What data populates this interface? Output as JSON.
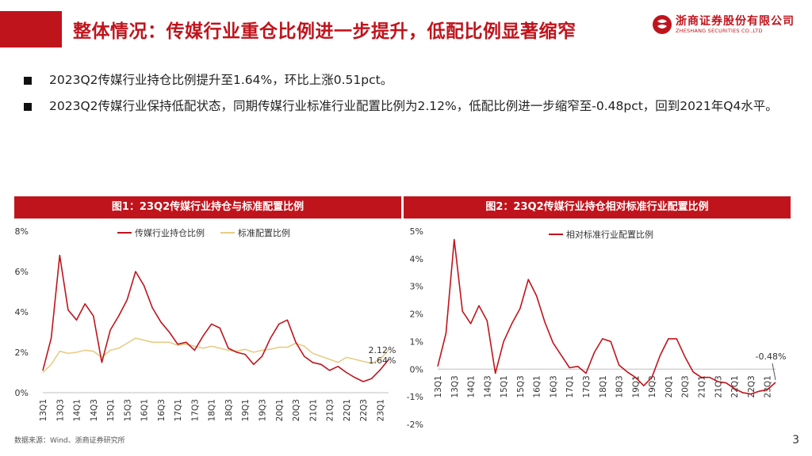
{
  "header": {
    "title": "整体情况：传媒行业重仓比例进一步提升，低配比例显著缩窄",
    "logo_cn": "浙商证券股份有限公司",
    "logo_en": "ZHESHANG SECURITIES CO.,LTD"
  },
  "bullets": [
    "2023Q2传媒行业持仓比例提升至1.64%，环比上涨0.51pct。",
    "2023Q2传媒行业保持低配状态，同期传媒行业标准行业配置比例为2.12%，低配比例进一步缩窄至-0.48pct，回到2021年Q4水平。"
  ],
  "colors": {
    "accent": "#c0141c",
    "series1": "#c0141c",
    "series2": "#e6cc85",
    "grid": "#d9d9d9"
  },
  "chart_data": [
    {
      "type": "line",
      "title": "图1：23Q2传媒行业持仓与标准配置比例",
      "x": [
        "13Q1",
        "13Q2",
        "13Q3",
        "13Q4",
        "14Q1",
        "14Q2",
        "14Q3",
        "14Q4",
        "15Q1",
        "15Q2",
        "15Q3",
        "15Q4",
        "16Q1",
        "16Q2",
        "16Q3",
        "16Q4",
        "17Q1",
        "17Q2",
        "17Q3",
        "17Q4",
        "18Q1",
        "18Q2",
        "18Q3",
        "18Q4",
        "19Q1",
        "19Q2",
        "19Q3",
        "19Q4",
        "20Q1",
        "20Q2",
        "20Q3",
        "20Q4",
        "21Q1",
        "21Q2",
        "21Q3",
        "21Q4",
        "22Q1",
        "22Q2",
        "22Q3",
        "22Q4",
        "23Q1",
        "23Q2"
      ],
      "tick_labels": [
        "13Q1",
        "13Q3",
        "14Q1",
        "14Q3",
        "15Q1",
        "15Q3",
        "16Q1",
        "16Q3",
        "17Q1",
        "17Q3",
        "18Q1",
        "18Q3",
        "19Q1",
        "19Q3",
        "20Q1",
        "20Q3",
        "21Q1",
        "21Q3",
        "22Q1",
        "22Q3",
        "23Q1"
      ],
      "series": [
        {
          "name": "传媒行业持仓比例",
          "values": [
            1.1,
            2.7,
            6.8,
            4.1,
            3.6,
            4.4,
            3.8,
            1.5,
            3.1,
            3.8,
            4.6,
            6.0,
            5.3,
            4.2,
            3.5,
            3.0,
            2.4,
            2.5,
            2.1,
            2.8,
            3.4,
            3.2,
            2.2,
            2.0,
            1.9,
            1.4,
            1.8,
            2.7,
            3.4,
            3.6,
            2.5,
            1.8,
            1.5,
            1.4,
            1.1,
            1.3,
            1.0,
            0.75,
            0.55,
            0.7,
            1.13,
            1.64
          ]
        },
        {
          "name": "标准配置比例",
          "values": [
            1.0,
            1.4,
            2.05,
            1.95,
            2.0,
            2.1,
            2.05,
            1.75,
            2.1,
            2.2,
            2.45,
            2.7,
            2.6,
            2.5,
            2.5,
            2.5,
            2.35,
            2.4,
            2.3,
            2.2,
            2.3,
            2.2,
            2.1,
            2.05,
            2.15,
            2.0,
            2.1,
            2.15,
            2.25,
            2.25,
            2.45,
            2.3,
            1.95,
            1.8,
            1.65,
            1.5,
            1.75,
            1.65,
            1.55,
            1.45,
            1.65,
            2.12
          ]
        }
      ],
      "ylim": [
        0,
        8
      ],
      "y_ticks": [
        "0%",
        "2%",
        "4%",
        "6%",
        "8%"
      ],
      "annotations": [
        "2.12%",
        "1.64%"
      ],
      "legend": "top"
    },
    {
      "type": "line",
      "title": "图2：23Q2传媒行业持仓相对标准行业配置比例",
      "x": [
        "13Q1",
        "13Q2",
        "13Q3",
        "13Q4",
        "14Q1",
        "14Q2",
        "14Q3",
        "14Q4",
        "15Q1",
        "15Q2",
        "15Q3",
        "15Q4",
        "16Q1",
        "16Q2",
        "16Q3",
        "16Q4",
        "17Q1",
        "17Q2",
        "17Q3",
        "17Q4",
        "18Q1",
        "18Q2",
        "18Q3",
        "18Q4",
        "19Q1",
        "19Q2",
        "19Q3",
        "19Q4",
        "20Q1",
        "20Q2",
        "20Q3",
        "20Q4",
        "21Q1",
        "21Q2",
        "21Q3",
        "21Q4",
        "22Q1",
        "22Q2",
        "22Q3",
        "22Q4",
        "23Q1",
        "23Q2"
      ],
      "tick_labels": [
        "13Q1",
        "13Q3",
        "14Q1",
        "14Q3",
        "15Q1",
        "15Q3",
        "16Q1",
        "16Q3",
        "17Q1",
        "17Q3",
        "18Q1",
        "18Q3",
        "19Q1",
        "19Q3",
        "20Q1",
        "20Q3",
        "21Q1",
        "21Q3",
        "22Q1",
        "22Q3",
        "23Q1"
      ],
      "series": [
        {
          "name": "相对标准行业配置比例",
          "values": [
            0.1,
            1.3,
            4.7,
            2.1,
            1.65,
            2.3,
            1.75,
            -0.15,
            1.0,
            1.65,
            2.2,
            3.25,
            2.65,
            1.7,
            0.95,
            0.5,
            0.05,
            0.1,
            -0.15,
            0.6,
            1.1,
            1.0,
            0.15,
            -0.1,
            -0.3,
            -0.6,
            -0.3,
            0.5,
            1.1,
            1.1,
            0.45,
            -0.1,
            -0.3,
            -0.3,
            -0.45,
            -0.5,
            -0.7,
            -0.85,
            -0.9,
            -0.8,
            -0.75,
            -0.48
          ]
        }
      ],
      "ylim": [
        -2,
        5
      ],
      "y_ticks": [
        "-2%",
        "-1%",
        "0%",
        "1%",
        "2%",
        "3%",
        "4%",
        "5%"
      ],
      "annotations": [
        "-0.48%"
      ],
      "legend": "top"
    }
  ],
  "footer": {
    "source": "数据来源：Wind、浙商证券研究所",
    "page": "3"
  }
}
